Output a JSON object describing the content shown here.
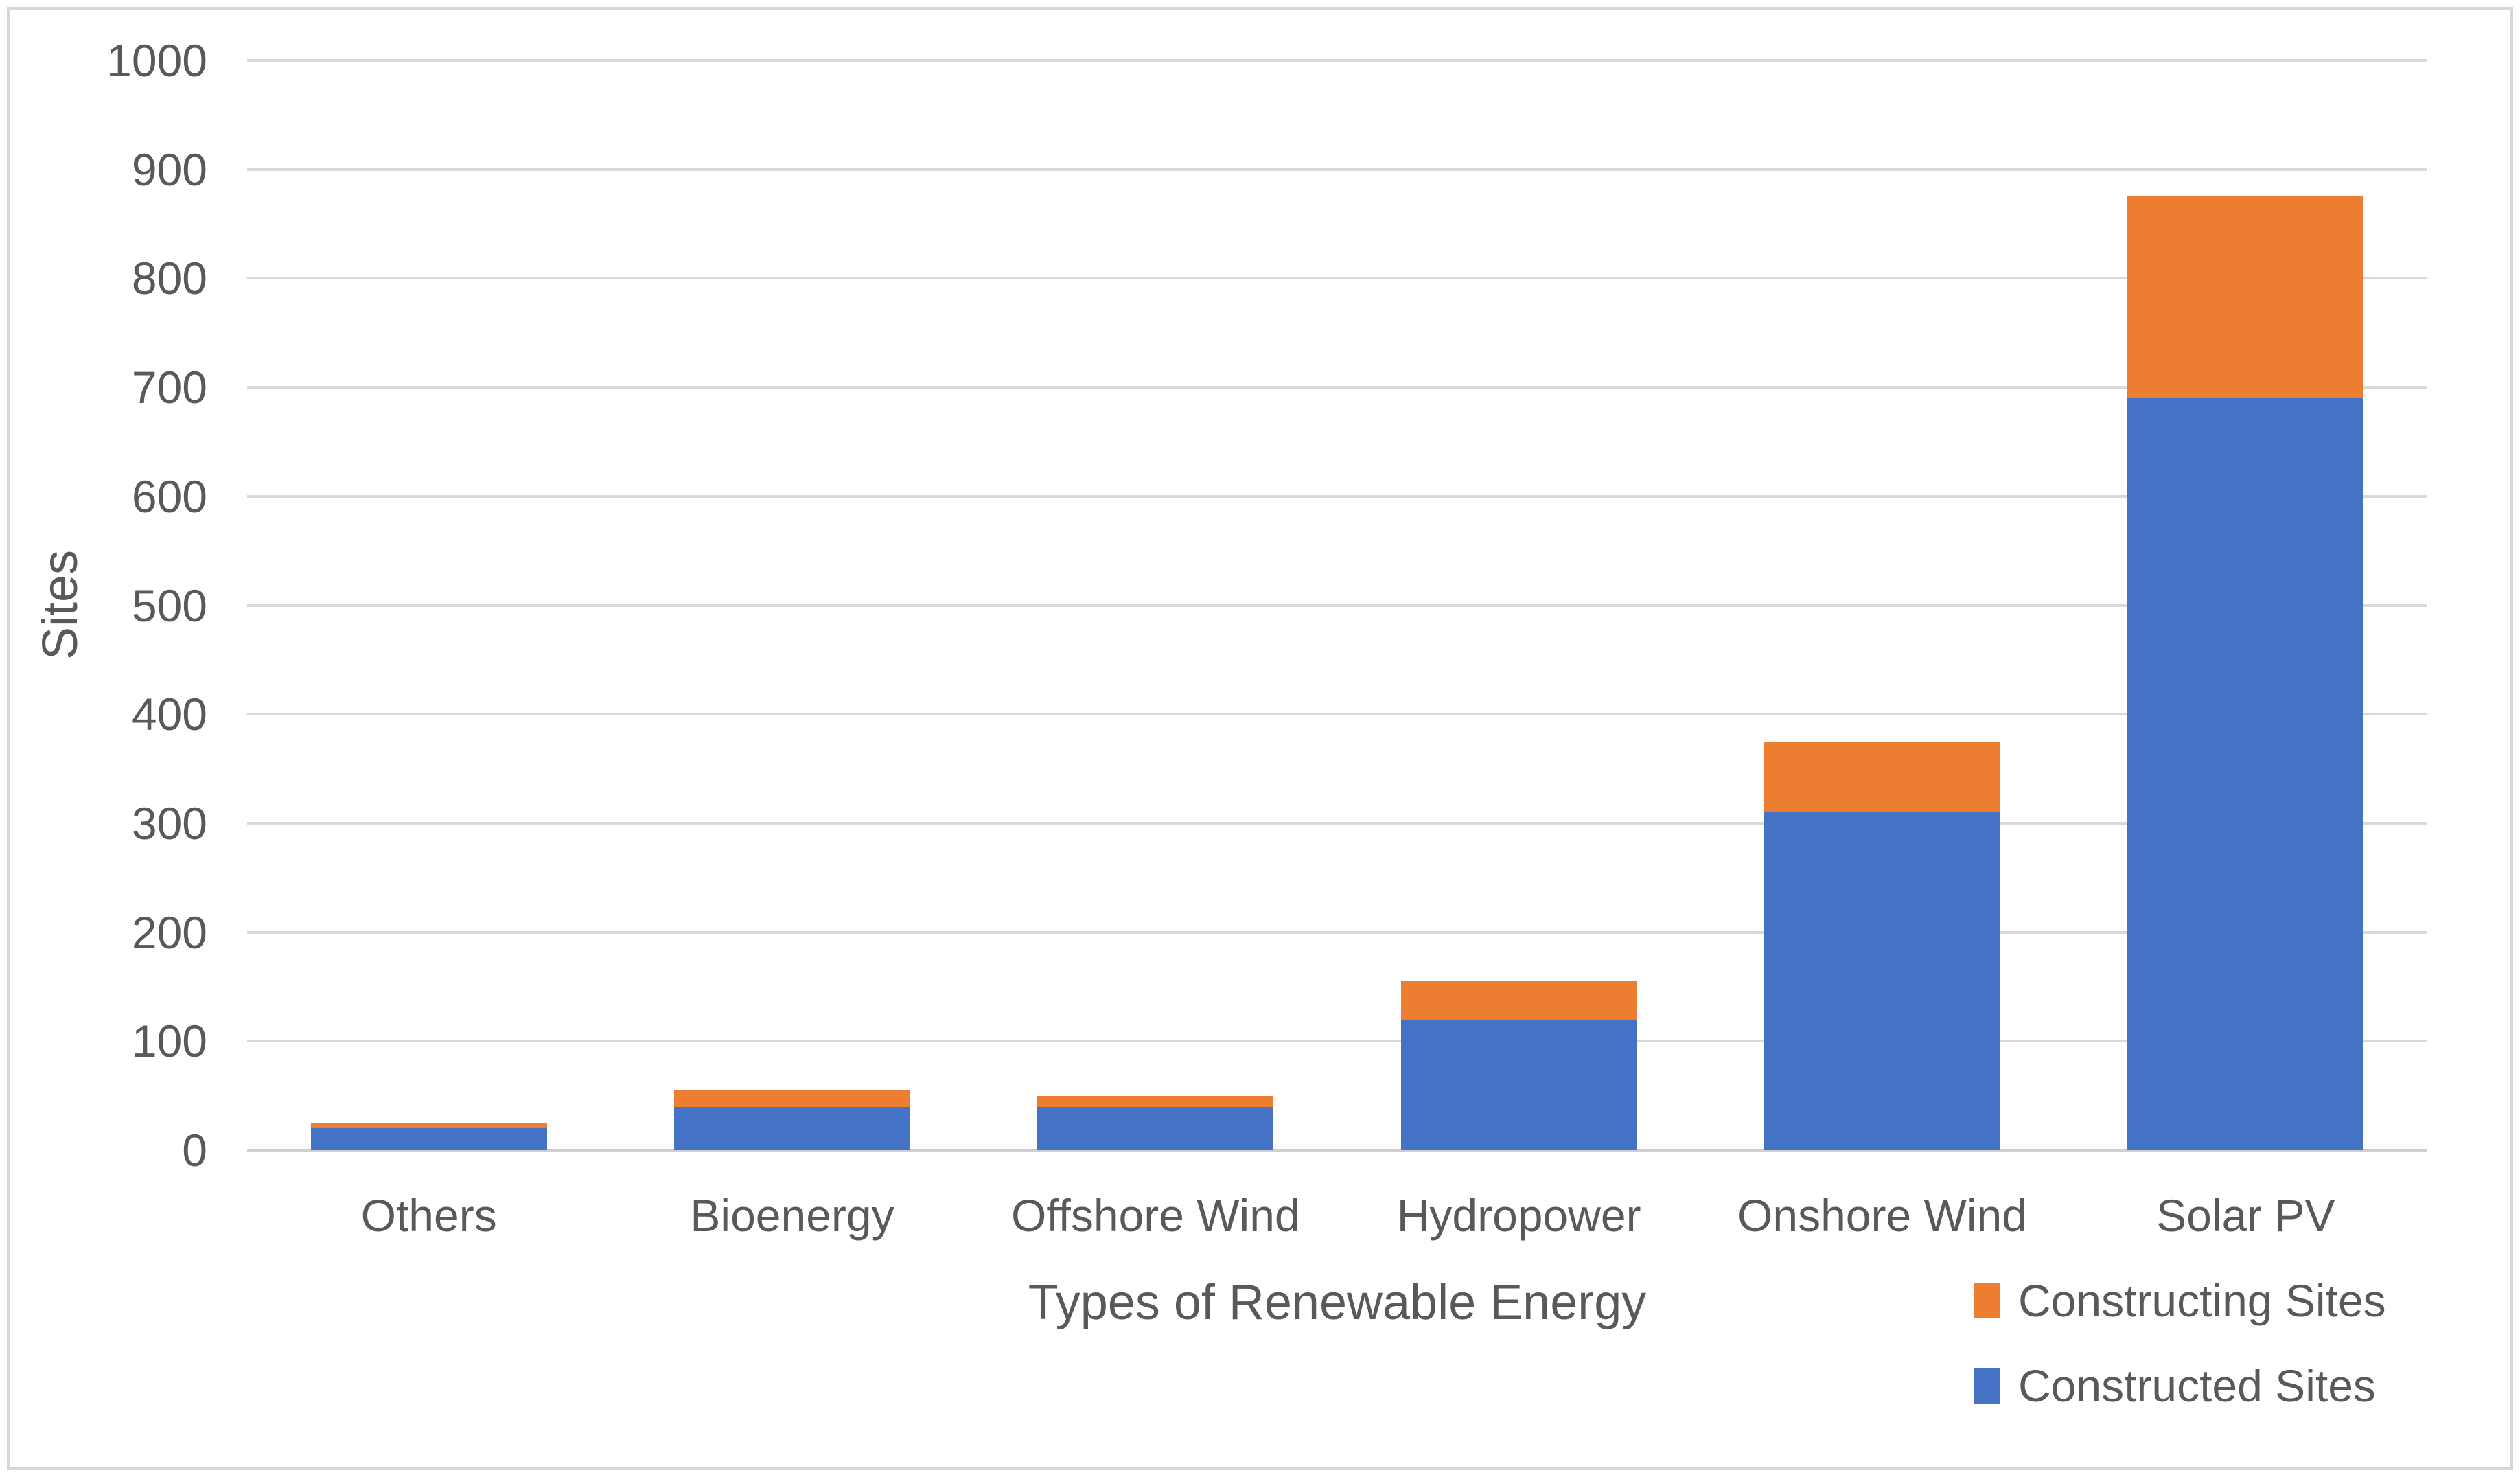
{
  "chart_data": {
    "type": "bar",
    "stacked": true,
    "categories": [
      "Others",
      "Bioenergy",
      "Offshore Wind",
      "Hydropower",
      "Onshore Wind",
      "Solar PV"
    ],
    "series": [
      {
        "name": "Constructed Sites",
        "color": "#4472C4",
        "values": [
          20,
          40,
          40,
          120,
          310,
          690
        ]
      },
      {
        "name": "Constructing Sites",
        "color": "#ED7D31",
        "values": [
          5,
          15,
          10,
          35,
          65,
          185
        ]
      }
    ],
    "totals": [
      25,
      55,
      50,
      155,
      375,
      875
    ],
    "xlabel": "Types of Renewable Energy",
    "ylabel": "Sites",
    "ylim": [
      0,
      1000
    ],
    "ytick_step": 100,
    "yticks": [
      "0",
      "100",
      "200",
      "300",
      "400",
      "500",
      "600",
      "700",
      "800",
      "900",
      "1000"
    ],
    "grid": "horizontal",
    "legend_position": "bottom-right",
    "legend": [
      {
        "label": "Constructing Sites",
        "color": "#ED7D31"
      },
      {
        "label": "Constructed Sites",
        "color": "#4472C4"
      }
    ]
  },
  "colors": {
    "background": "#FFFFFF",
    "border": "#D7D7D7",
    "gridline": "#D9D9D9",
    "axis_line": "#CFCFCF",
    "text": "#595959",
    "series_constructed": "#4472C4",
    "series_constructing": "#ED7D31"
  }
}
